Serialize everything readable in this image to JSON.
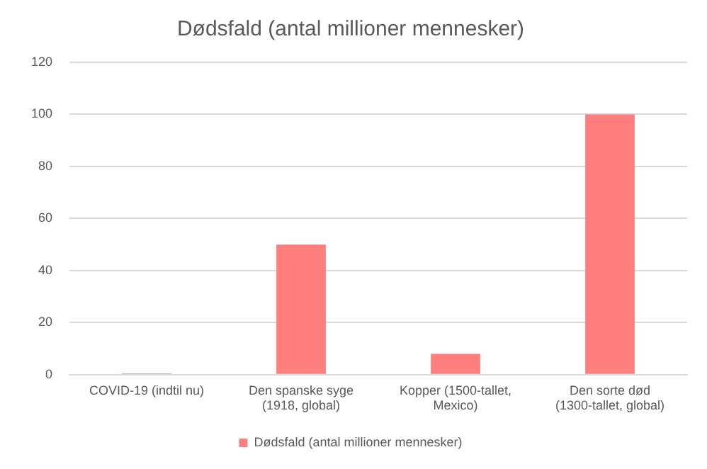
{
  "chart_data": {
    "type": "bar",
    "title": "Dødsfald (antal millioner mennesker)",
    "categories": [
      "COVID-19 (indtil nu)",
      "Den spanske syge (1918, global)",
      "Kopper (1500-tallet, Mexico)",
      "Den sorte død (1300-tallet, global)"
    ],
    "series": [
      {
        "name": "Dødsfald (antal millioner mennesker)",
        "color": "#ff7f7f",
        "values": [
          0.5,
          50,
          8,
          100
        ]
      }
    ],
    "ylim": [
      0,
      120
    ],
    "yticks": [
      0,
      20,
      40,
      60,
      80,
      100,
      120
    ],
    "grid": "y",
    "legend": "bottom"
  }
}
